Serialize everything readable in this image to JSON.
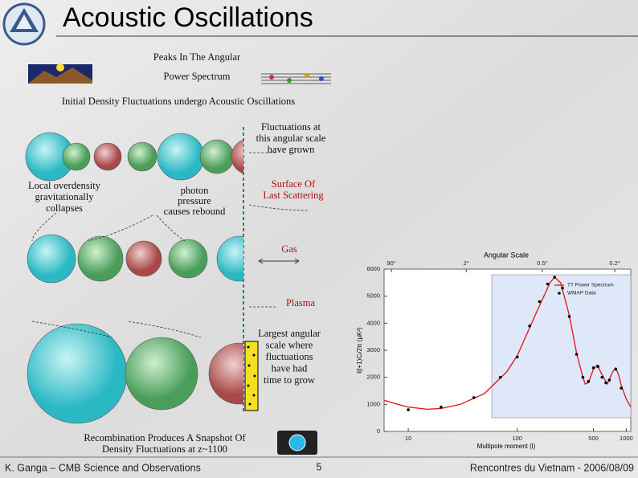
{
  "slide": {
    "title": "Acoustic Oscillations",
    "footer": {
      "left": "K. Ganga – CMB Science and Observations",
      "page": 5,
      "right": "Rencontres du Vietnam - 2006/08/09"
    }
  },
  "diagram": {
    "heading": [
      "Peaks In The Angular",
      "Power Spectrum"
    ],
    "subheading": "Initial Density Fluctuations undergo Acoustic Oscillations",
    "grown": [
      "Fluctuations at",
      "this angular scale",
      "have grown"
    ],
    "overdensity": [
      "Local overdensity",
      "gravitationally",
      "collapses"
    ],
    "rebound": [
      "photon",
      "pressure",
      "causes rebound"
    ],
    "surface": [
      "Surface Of",
      "Last Scattering"
    ],
    "gas": "Gas",
    "plasma": "Plasma",
    "largest": [
      "Largest angular",
      "scale where",
      "fluctuations",
      "have had",
      "time to grow"
    ],
    "recombination": [
      "Recombination Produces A Snapshot Of",
      "Density Fluctuations at z~1100"
    ]
  },
  "chart_data": {
    "type": "line",
    "title": "Angular Scale",
    "x_label": "Multipole moment (l)",
    "y_label": "l(l+1)Cₗ/2π (μK²)",
    "xscale": "log",
    "xlim": [
      6,
      1100
    ],
    "xticks": [
      10,
      100,
      500,
      1000
    ],
    "x2ticks": [
      {
        "value": 7,
        "label": "90°"
      },
      {
        "value": 34,
        "label": "2°"
      },
      {
        "value": 170,
        "label": "0.5°"
      },
      {
        "value": 785,
        "label": "0.2°"
      }
    ],
    "ylim": [
      0,
      6000
    ],
    "yticks": [
      0,
      1000,
      2000,
      3000,
      4000,
      5000,
      6000
    ],
    "series": [
      {
        "name": "TT Power Spectrum",
        "color": "#e02020",
        "x": [
          6,
          8,
          10,
          15,
          20,
          30,
          50,
          80,
          100,
          150,
          200,
          220,
          250,
          300,
          350,
          400,
          420,
          450,
          500,
          540,
          600,
          670,
          750,
          800,
          850,
          900,
          1000,
          1100
        ],
        "values": [
          1150,
          1000,
          900,
          820,
          850,
          1000,
          1400,
          2200,
          2800,
          4400,
          5500,
          5700,
          5500,
          4300,
          2900,
          2000,
          1750,
          1800,
          2300,
          2450,
          2100,
          1750,
          2200,
          2350,
          2100,
          1700,
          1200,
          900
        ]
      },
      {
        "name": "WMAP Data",
        "color": "#000000",
        "marker": true,
        "x": [
          10,
          20,
          40,
          70,
          100,
          130,
          160,
          190,
          220,
          260,
          300,
          350,
          400,
          450,
          500,
          550,
          600,
          650,
          700,
          800,
          900
        ],
        "values": [
          800,
          900,
          1250,
          2000,
          2750,
          3900,
          4800,
          5450,
          5700,
          5300,
          4250,
          2850,
          2000,
          1850,
          2350,
          2400,
          2000,
          1800,
          1900,
          2300,
          1600
        ]
      }
    ],
    "legend": "upper right"
  }
}
